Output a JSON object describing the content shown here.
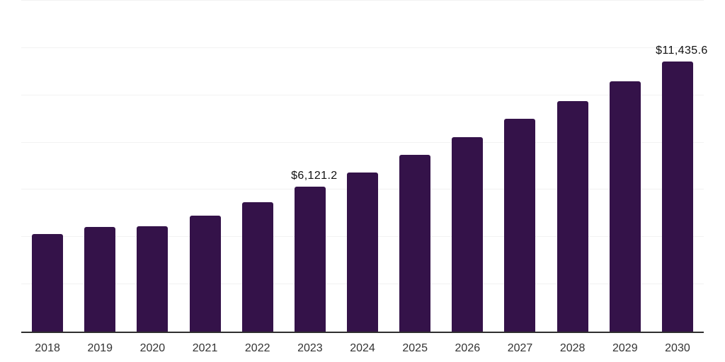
{
  "chart_data": {
    "type": "bar",
    "title": "",
    "xlabel": "",
    "ylabel": "",
    "categories": [
      "2018",
      "2019",
      "2020",
      "2021",
      "2022",
      "2023",
      "2024",
      "2025",
      "2026",
      "2027",
      "2028",
      "2029",
      "2030"
    ],
    "values": [
      4120,
      4430,
      4460,
      4920,
      5480,
      6121.2,
      6730,
      7470,
      8240,
      8990,
      9760,
      10600,
      11435.6
    ],
    "ylim": [
      0,
      14000
    ],
    "gridline_step": 2000,
    "grid": true,
    "legend": false,
    "y_tick_labels_visible": false,
    "data_labels": [
      {
        "category": "2023",
        "text": "$6,121.2"
      },
      {
        "category": "2030",
        "text": "$11,435.6"
      }
    ]
  },
  "style": {
    "background": "#ffffff",
    "bar_color": "#341249",
    "grid_color": "#f2f2f2",
    "axis_color": "#2f2f2f",
    "tick_label_color": "#333333",
    "value_label_color": "#111111"
  }
}
